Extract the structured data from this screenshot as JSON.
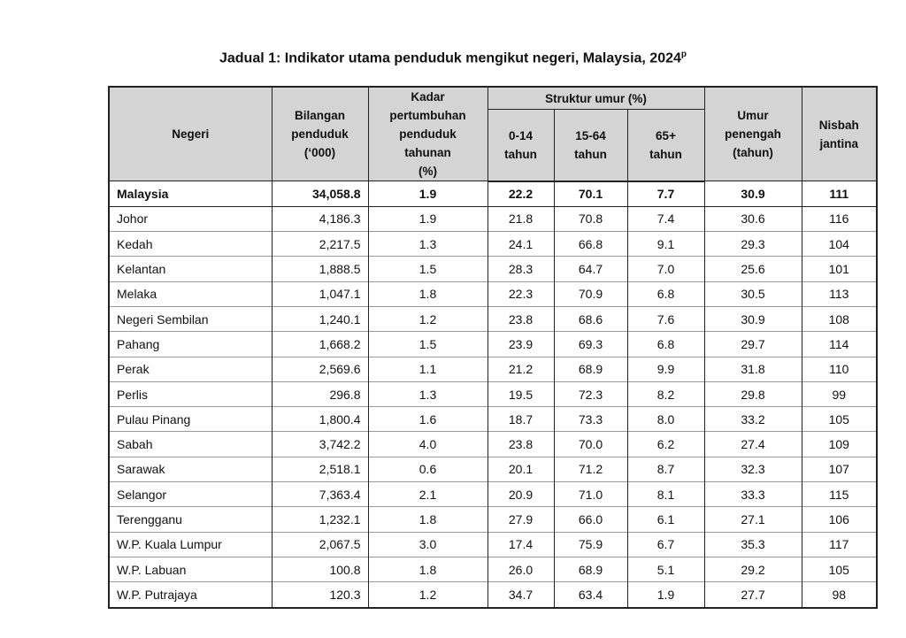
{
  "title": "Jadual 1: Indikator utama penduduk mengikut negeri, Malaysia, 2024",
  "title_superscript": "p",
  "header": {
    "columns_left": [
      [
        "Negeri"
      ],
      [
        "Bilangan",
        "penduduk",
        "(‘000)"
      ],
      [
        "Kadar",
        "pertumbuhan",
        "penduduk",
        "tahunan",
        "(%)"
      ]
    ],
    "group": {
      "label": "Struktur umur (%)",
      "subcolumns": [
        [
          "0-14",
          "tahun"
        ],
        [
          "15-64",
          "tahun"
        ],
        [
          "65+",
          "tahun"
        ]
      ]
    },
    "columns_right": [
      [
        "Umur",
        "penengah",
        "(tahun)"
      ],
      [
        "Nisbah",
        "jantina"
      ]
    ]
  },
  "table": {
    "rows": [
      [
        "Malaysia",
        "34,058.8",
        "1.9",
        "22.2",
        "70.1",
        "7.7",
        "30.9",
        "111"
      ],
      [
        "Johor",
        "4,186.3",
        "1.9",
        "21.8",
        "70.8",
        "7.4",
        "30.6",
        "116"
      ],
      [
        "Kedah",
        "2,217.5",
        "1.3",
        "24.1",
        "66.8",
        "9.1",
        "29.3",
        "104"
      ],
      [
        "Kelantan",
        "1,888.5",
        "1.5",
        "28.3",
        "64.7",
        "7.0",
        "25.6",
        "101"
      ],
      [
        "Melaka",
        "1,047.1",
        "1.8",
        "22.3",
        "70.9",
        "6.8",
        "30.5",
        "113"
      ],
      [
        "Negeri Sembilan",
        "1,240.1",
        "1.2",
        "23.8",
        "68.6",
        "7.6",
        "30.9",
        "108"
      ],
      [
        "Pahang",
        "1,668.2",
        "1.5",
        "23.9",
        "69.3",
        "6.8",
        "29.7",
        "114"
      ],
      [
        "Perak",
        "2,569.6",
        "1.1",
        "21.2",
        "68.9",
        "9.9",
        "31.8",
        "110"
      ],
      [
        "Perlis",
        "296.8",
        "1.3",
        "19.5",
        "72.3",
        "8.2",
        "29.8",
        "99"
      ],
      [
        "Pulau Pinang",
        "1,800.4",
        "1.6",
        "18.7",
        "73.3",
        "8.0",
        "33.2",
        "105"
      ],
      [
        "Sabah",
        "3,742.2",
        "4.0",
        "23.8",
        "70.0",
        "6.2",
        "27.4",
        "109"
      ],
      [
        "Sarawak",
        "2,518.1",
        "0.6",
        "20.1",
        "71.2",
        "8.7",
        "32.3",
        "107"
      ],
      [
        "Selangor",
        "7,363.4",
        "2.1",
        "20.9",
        "71.0",
        "8.1",
        "33.3",
        "115"
      ],
      [
        "Terengganu",
        "1,232.1",
        "1.8",
        "27.9",
        "66.0",
        "6.1",
        "27.1",
        "106"
      ],
      [
        "W.P. Kuala Lumpur",
        "2,067.5",
        "3.0",
        "17.4",
        "75.9",
        "6.7",
        "35.3",
        "117"
      ],
      [
        "W.P. Labuan",
        "100.8",
        "1.8",
        "26.0",
        "68.9",
        "5.1",
        "29.2",
        "105"
      ],
      [
        "W.P. Putrajaya",
        "120.3",
        "1.2",
        "34.7",
        "63.4",
        "1.9",
        "27.7",
        "98"
      ]
    ]
  }
}
